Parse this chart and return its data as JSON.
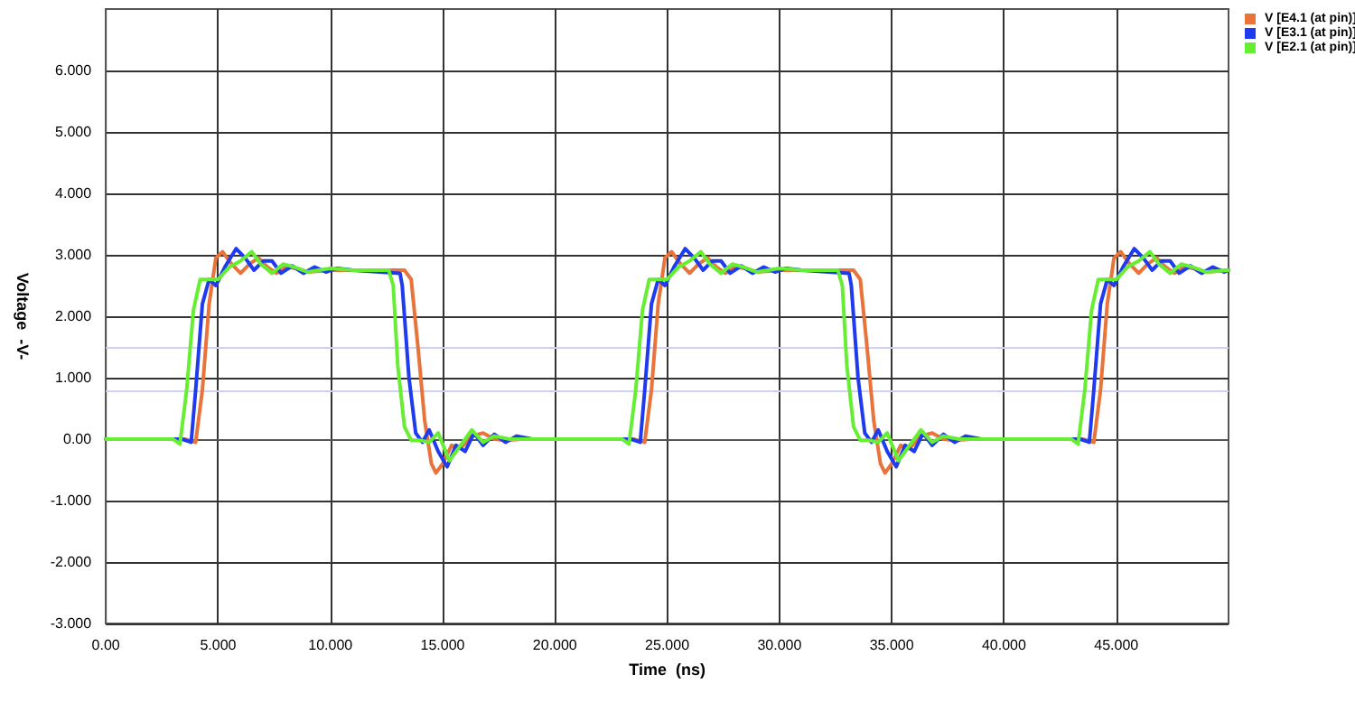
{
  "chart_data": {
    "type": "line",
    "xlabel": "Time  (ns)",
    "ylabel": "Voltage  -V-",
    "xlim": [
      0,
      50
    ],
    "ylim": [
      -3,
      7
    ],
    "xticks": [
      {
        "value": 0,
        "label": "0.00"
      },
      {
        "value": 5,
        "label": "5.000"
      },
      {
        "value": 10,
        "label": "10.000"
      },
      {
        "value": 15,
        "label": "15.000"
      },
      {
        "value": 20,
        "label": "20.000"
      },
      {
        "value": 25,
        "label": "25.000"
      },
      {
        "value": 30,
        "label": "30.000"
      },
      {
        "value": 35,
        "label": "35.000"
      },
      {
        "value": 40,
        "label": "40.000"
      },
      {
        "value": 45,
        "label": "45.000"
      }
    ],
    "yticks": [
      {
        "value": -3,
        "label": "-3.000"
      },
      {
        "value": -2,
        "label": "-2.000"
      },
      {
        "value": -1,
        "label": "-1.000"
      },
      {
        "value": 0,
        "label": "0.00"
      },
      {
        "value": 1,
        "label": "1.000"
      },
      {
        "value": 2,
        "label": "2.000"
      },
      {
        "value": 3,
        "label": "3.000"
      },
      {
        "value": 4,
        "label": "4.000"
      },
      {
        "value": 5,
        "label": "5.000"
      },
      {
        "value": 6,
        "label": "6.000"
      }
    ],
    "grid": true,
    "legend": "top right",
    "marker": "none",
    "line_style": "solid",
    "ref_lines": [
      {
        "axis": "y",
        "value": 1.5,
        "color": "#d0d0f0"
      },
      {
        "axis": "y",
        "value": 0.8,
        "color": "#d0d0f0"
      }
    ],
    "series": [
      {
        "name": "V [E4.1 (at pin)]",
        "color": "#e8743b",
        "x": [
          0,
          3.5,
          4,
          4.3,
          4.6,
          4.9,
          5.2,
          5.6,
          6,
          6.4,
          6.8,
          7.2,
          7.6,
          8,
          8.5,
          9,
          10,
          11,
          13.3,
          13.6,
          13.9,
          14.2,
          14.5,
          14.7,
          15,
          15.4,
          15.8,
          16.3,
          16.8,
          17.3,
          17.8,
          18.5,
          23.5,
          24,
          24.3,
          24.6,
          24.9,
          25.2,
          25.6,
          26,
          26.4,
          26.8,
          27.2,
          27.6,
          28,
          28.5,
          29,
          30,
          31,
          33.3,
          33.6,
          33.9,
          34.2,
          34.5,
          34.7,
          35,
          35.4,
          35.8,
          36.3,
          36.8,
          37.3,
          37.8,
          38.5,
          43.5,
          44,
          44.3,
          44.6,
          44.9,
          45.2,
          45.6,
          46,
          46.4,
          46.8,
          47.2,
          47.6,
          48,
          48.5,
          49,
          50
        ],
        "values": [
          0,
          0,
          -0.05,
          0.8,
          2.2,
          2.95,
          3.05,
          2.85,
          2.7,
          2.85,
          2.95,
          2.8,
          2.7,
          2.8,
          2.78,
          2.72,
          2.75,
          2.75,
          2.75,
          2.6,
          1.5,
          0.3,
          -0.4,
          -0.55,
          -0.4,
          -0.1,
          -0.15,
          0.05,
          0.1,
          0,
          -0.02,
          0,
          0,
          -0.05,
          0.8,
          2.2,
          2.95,
          3.05,
          2.85,
          2.7,
          2.85,
          2.95,
          2.8,
          2.7,
          2.8,
          2.78,
          2.72,
          2.75,
          2.75,
          2.75,
          2.6,
          1.5,
          0.3,
          -0.4,
          -0.55,
          -0.4,
          -0.1,
          -0.15,
          0.05,
          0.1,
          0,
          -0.02,
          0,
          0,
          -0.05,
          0.8,
          2.2,
          2.95,
          3.05,
          2.85,
          2.7,
          2.85,
          2.95,
          2.8,
          2.7,
          2.8,
          2.78,
          2.72,
          2.75
        ]
      },
      {
        "name": "V [E3.1 (at pin)]",
        "color": "#1f3bf0",
        "x": [
          0,
          3.4,
          3.8,
          4,
          4.3,
          4.6,
          4.9,
          5.3,
          5.8,
          6.2,
          6.6,
          7,
          7.4,
          7.8,
          8.3,
          8.8,
          9.3,
          9.8,
          10.3,
          11,
          13.1,
          13.2,
          13.5,
          13.8,
          14.1,
          14.4,
          14.8,
          15.2,
          15.6,
          16,
          16.4,
          16.8,
          17.3,
          17.8,
          18.3,
          19,
          23.4,
          23.8,
          24,
          24.3,
          24.6,
          24.9,
          25.3,
          25.8,
          26.2,
          26.6,
          27,
          27.4,
          27.8,
          28.3,
          28.8,
          29.3,
          29.8,
          30.3,
          31,
          33.1,
          33.2,
          33.5,
          33.8,
          34.1,
          34.4,
          34.8,
          35.2,
          35.6,
          36,
          36.4,
          36.8,
          37.3,
          37.8,
          38.3,
          39,
          43.4,
          43.8,
          44,
          44.3,
          44.6,
          44.9,
          45.3,
          45.8,
          46.2,
          46.6,
          47,
          47.4,
          47.8,
          48.3,
          48.8,
          49.3,
          49.8,
          50
        ],
        "values": [
          0,
          0,
          -0.05,
          0.8,
          2.2,
          2.6,
          2.5,
          2.8,
          3.1,
          2.95,
          2.75,
          2.9,
          2.9,
          2.7,
          2.82,
          2.7,
          2.8,
          2.72,
          2.78,
          2.75,
          2.7,
          2.5,
          1,
          0.1,
          -0.05,
          0.15,
          -0.2,
          -0.45,
          -0.1,
          -0.2,
          0.1,
          -0.1,
          0.08,
          -0.05,
          0.05,
          0,
          0,
          -0.05,
          0.8,
          2.2,
          2.6,
          2.5,
          2.8,
          3.1,
          2.95,
          2.75,
          2.9,
          2.9,
          2.7,
          2.82,
          2.7,
          2.8,
          2.72,
          2.78,
          2.75,
          2.7,
          2.5,
          1,
          0.1,
          -0.05,
          0.15,
          -0.2,
          -0.45,
          -0.1,
          -0.2,
          0.1,
          -0.1,
          0.08,
          -0.05,
          0.05,
          0,
          0,
          -0.05,
          0.8,
          2.2,
          2.6,
          2.5,
          2.8,
          3.1,
          2.95,
          2.75,
          2.9,
          2.9,
          2.7,
          2.82,
          2.7,
          2.8,
          2.72,
          2.75
        ]
      },
      {
        "name": "V [E2.1 (at pin)]",
        "color": "#66ee33",
        "x": [
          0,
          3,
          3.3,
          3.6,
          3.9,
          4.2,
          4.6,
          5,
          5.5,
          6,
          6.5,
          6.9,
          7.4,
          7.9,
          8.4,
          9,
          10,
          11,
          12.6,
          12.8,
          13,
          13.3,
          13.6,
          14,
          14.4,
          14.8,
          15.3,
          15.7,
          16.3,
          16.8,
          17.3,
          18,
          23,
          23.3,
          23.6,
          23.9,
          24.2,
          24.6,
          25,
          25.5,
          26,
          26.5,
          26.9,
          27.4,
          27.9,
          28.4,
          29,
          30,
          31,
          32.6,
          32.8,
          33,
          33.3,
          33.6,
          34,
          34.4,
          34.8,
          35.3,
          35.7,
          36.3,
          36.8,
          37.3,
          38,
          43,
          43.3,
          43.6,
          43.9,
          44.2,
          44.6,
          45,
          45.5,
          46,
          46.5,
          46.9,
          47.4,
          47.9,
          48.4,
          49,
          50
        ],
        "values": [
          0,
          0,
          -0.08,
          0.8,
          2.1,
          2.6,
          2.6,
          2.6,
          2.8,
          2.9,
          3.05,
          2.85,
          2.7,
          2.85,
          2.8,
          2.72,
          2.78,
          2.75,
          2.75,
          2.5,
          1.2,
          0.2,
          -0.02,
          -0.02,
          -0.05,
          0.1,
          -0.35,
          -0.15,
          0.15,
          -0.05,
          0.05,
          0,
          0,
          -0.08,
          0.8,
          2.1,
          2.6,
          2.6,
          2.6,
          2.8,
          2.9,
          3.05,
          2.85,
          2.7,
          2.85,
          2.8,
          2.72,
          2.78,
          2.75,
          2.75,
          2.5,
          1.2,
          0.2,
          -0.02,
          -0.02,
          -0.05,
          0.1,
          -0.35,
          -0.15,
          0.15,
          -0.05,
          0.05,
          0,
          0,
          -0.08,
          0.8,
          2.1,
          2.6,
          2.6,
          2.6,
          2.8,
          2.9,
          3.05,
          2.85,
          2.7,
          2.85,
          2.8,
          2.72,
          2.75
        ]
      }
    ]
  }
}
